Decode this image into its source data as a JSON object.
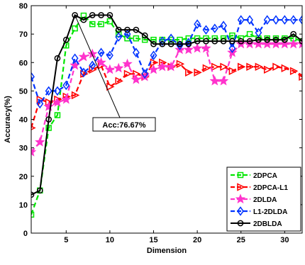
{
  "chart_data": {
    "type": "line",
    "xlabel": "Dimension",
    "ylabel": "Accuracy(%)",
    "xlim": [
      1,
      32
    ],
    "ylim": [
      0,
      80
    ],
    "xticks": [
      5,
      10,
      15,
      20,
      25,
      30
    ],
    "yticks": [
      0,
      10,
      20,
      30,
      40,
      50,
      60,
      70,
      80
    ],
    "grid": false,
    "legend_position": "bottom-right",
    "annotation": {
      "text": "Acc:76.67%",
      "x": 6,
      "y": 76.67
    },
    "x": [
      1,
      2,
      3,
      4,
      5,
      6,
      7,
      8,
      9,
      10,
      11,
      12,
      13,
      14,
      15,
      16,
      17,
      18,
      19,
      20,
      21,
      22,
      23,
      24,
      25,
      26,
      27,
      28,
      29,
      30,
      31,
      32
    ],
    "series": [
      {
        "name": "2DPCA",
        "color": "#00e600",
        "marker": "square",
        "dash": "dash",
        "values": [
          6.5,
          15,
          37,
          41.5,
          66,
          72,
          76.5,
          73.5,
          73.5,
          74.5,
          70,
          68.5,
          68.5,
          68,
          68,
          68,
          68,
          68,
          68.5,
          68.5,
          68.5,
          68.5,
          68.5,
          69.5,
          68.5,
          70,
          68.5,
          68.5,
          68.5,
          68.5,
          68.5,
          67.5
        ]
      },
      {
        "name": "2DPCA-L1",
        "color": "#ff0000",
        "marker": "triangle-right",
        "dash": "dash",
        "values": [
          37,
          47,
          46,
          47,
          48,
          48.5,
          56,
          57.5,
          59,
          51.5,
          53.5,
          56,
          56,
          55,
          60,
          60,
          58.5,
          59.5,
          56.5,
          56.5,
          58,
          58.5,
          58.5,
          57,
          58.5,
          58.5,
          58.5,
          57.5,
          58.5,
          58,
          57,
          55
        ]
      },
      {
        "name": "2DLDA",
        "color": "#ff33cc",
        "marker": "star",
        "dash": "dash",
        "values": [
          28.5,
          32,
          44.5,
          46,
          47,
          59,
          62,
          63,
          60,
          57.5,
          58,
          59.5,
          54,
          55,
          57.5,
          58.5,
          58.5,
          64.5,
          64.5,
          65,
          65,
          53.5,
          53.5,
          63.5,
          66.5,
          66.5,
          66.5,
          66.5,
          66.5,
          66.5,
          66.5,
          66.5
        ]
      },
      {
        "name": "L1-2DLDA",
        "color": "#0033ff",
        "marker": "diamond",
        "dash": "dash",
        "values": [
          55,
          45.5,
          50,
          50,
          52,
          61.5,
          56.5,
          59,
          63.5,
          62.5,
          69,
          70,
          63.5,
          56,
          62.5,
          67.5,
          68.5,
          66,
          67,
          73.5,
          71.5,
          72,
          73,
          65,
          75,
          75,
          70.5,
          75,
          75,
          75,
          75,
          75
        ]
      },
      {
        "name": "2DBLDA",
        "color": "#000000",
        "marker": "circle",
        "dash": "solid",
        "values": [
          13.5,
          15,
          40,
          61.5,
          68,
          76.67,
          75,
          76.67,
          76.67,
          76.67,
          71.5,
          71.5,
          71.5,
          69.5,
          66.5,
          66.5,
          66.5,
          66.5,
          66.5,
          67.5,
          67.5,
          67.5,
          67.5,
          67.5,
          67.5,
          67.5,
          68,
          68,
          68,
          68,
          70,
          67.5
        ]
      }
    ]
  }
}
